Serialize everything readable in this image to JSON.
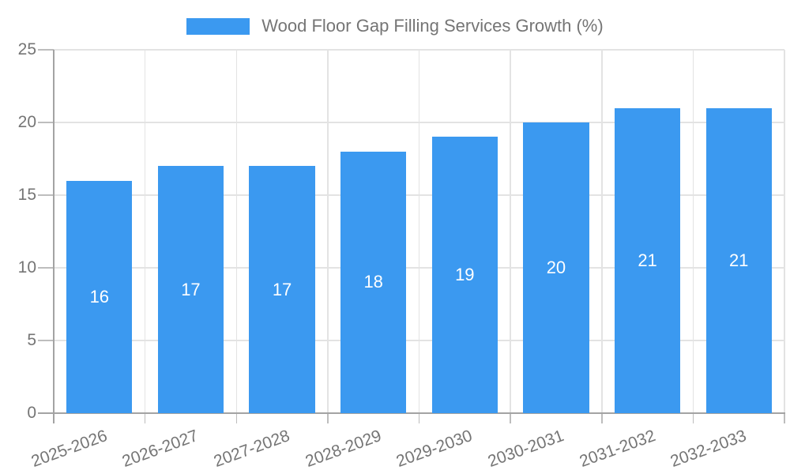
{
  "legend": {
    "series_label": "Wood Floor Gap Filling Services Growth (%)",
    "swatch_color": "#3b99f0"
  },
  "chart_data": {
    "type": "bar",
    "title": "Wood Floor Gap Filling Services Growth (%)",
    "categories": [
      "2025-2026",
      "2026-2027",
      "2027-2028",
      "2028-2029",
      "2029-2030",
      "2030-2031",
      "2031-2032",
      "2032-2033"
    ],
    "values": [
      16,
      17,
      17,
      18,
      19,
      20,
      21,
      21
    ],
    "bar_labels": [
      "16",
      "17",
      "17",
      "18",
      "19",
      "20",
      "21",
      "21"
    ],
    "xlabel": "",
    "ylabel": "",
    "ylim": [
      0,
      25
    ],
    "y_ticks": [
      0,
      5,
      10,
      15,
      20,
      25
    ],
    "grid": true,
    "legend_position": "top",
    "bar_color": "#3b99f0",
    "bar_label_color": "#ffffff"
  },
  "colors": {
    "background": "#ffffff",
    "axis": "#a3a3a3",
    "grid": "#e3e3e3",
    "tick": "#bdbdbd",
    "text": "#757575"
  }
}
